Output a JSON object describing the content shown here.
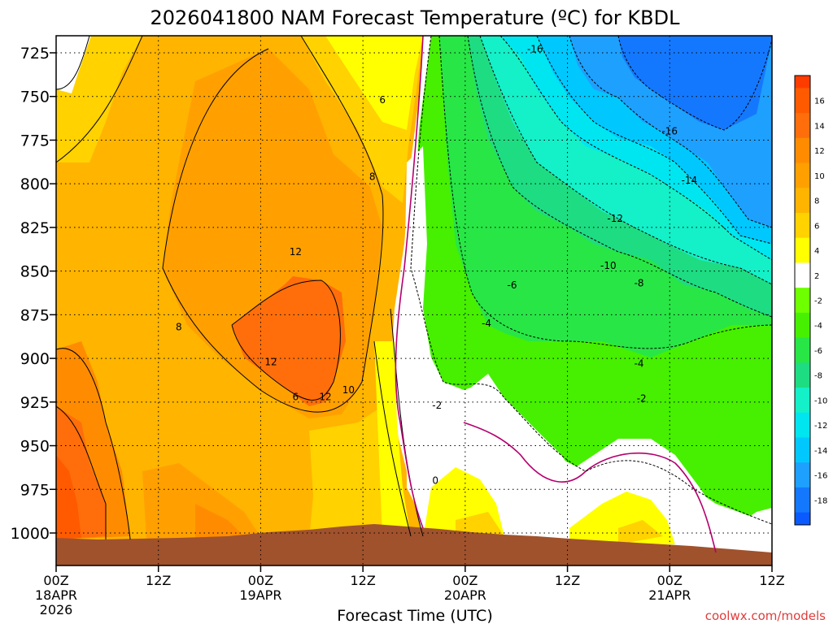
{
  "chart_data": {
    "type": "heatmap",
    "title": "2026041800 NAM Forecast Temperature (ºC) for KBDL",
    "xlabel": "Forecast Time (UTC)",
    "credit": "coolwx.com/models",
    "y_ticks": [
      "725",
      "750",
      "775",
      "800",
      "825",
      "850",
      "875",
      "900",
      "925",
      "950",
      "975",
      "1000"
    ],
    "y_values": [
      725,
      750,
      775,
      800,
      825,
      850,
      875,
      900,
      925,
      950,
      975,
      1000
    ],
    "ylim": [
      1018,
      715
    ],
    "x_ticks": [
      {
        "hour": 0,
        "line1": "00Z",
        "line2": "18APR",
        "line3": "2026"
      },
      {
        "hour": 12,
        "line1": "12Z",
        "line2": "",
        "line3": ""
      },
      {
        "hour": 24,
        "line1": "00Z",
        "line2": "19APR",
        "line3": ""
      },
      {
        "hour": 36,
        "line1": "12Z",
        "line2": "",
        "line3": ""
      },
      {
        "hour": 48,
        "line1": "00Z",
        "line2": "20APR",
        "line3": ""
      },
      {
        "hour": 60,
        "line1": "12Z",
        "line2": "",
        "line3": ""
      },
      {
        "hour": 72,
        "line1": "00Z",
        "line2": "21APR",
        "line3": ""
      },
      {
        "hour": 84,
        "line1": "12Z",
        "line2": "",
        "line3": ""
      }
    ],
    "xlim": [
      0,
      84
    ],
    "grid": true,
    "legend": "right",
    "colorbar": [
      {
        "label": "16",
        "color": "#ff5a00"
      },
      {
        "label": "14",
        "color": "#ff6e0a"
      },
      {
        "label": "12",
        "color": "#ff8c00"
      },
      {
        "label": "10",
        "color": "#ffa000"
      },
      {
        "label": "8",
        "color": "#ffb400"
      },
      {
        "label": "6",
        "color": "#ffd200"
      },
      {
        "label": "4",
        "color": "#ffff00"
      },
      {
        "label": "2",
        "color": "#ffffff"
      },
      {
        "label": "-2",
        "color": "#6eff00"
      },
      {
        "label": "-4",
        "color": "#46f000"
      },
      {
        "label": "-6",
        "color": "#28e646"
      },
      {
        "label": "-8",
        "color": "#1edc82"
      },
      {
        "label": "-10",
        "color": "#14f0c8"
      },
      {
        "label": "-12",
        "color": "#00e6f0"
      },
      {
        "label": "-14",
        "color": "#00c8ff"
      },
      {
        "label": "-16",
        "color": "#1ea0ff"
      },
      {
        "label": "-18",
        "color": "#1478ff"
      }
    ],
    "colorbar_top": "#ff3c00",
    "colorbar_bottom": "#0a5aff",
    "contour_labels": [
      {
        "text": "6",
        "hour": 38.3,
        "p": 752
      },
      {
        "text": "8",
        "hour": 37.1,
        "p": 796
      },
      {
        "text": "12",
        "hour": 28.1,
        "p": 839
      },
      {
        "text": "8",
        "hour": 14.4,
        "p": 882
      },
      {
        "text": "12",
        "hour": 25.2,
        "p": 902
      },
      {
        "text": "10",
        "hour": 34.3,
        "p": 918
      },
      {
        "text": "12",
        "hour": 31.6,
        "p": 922
      },
      {
        "text": "6",
        "hour": 28.1,
        "p": 922
      },
      {
        "text": "-2",
        "hour": 44.7,
        "p": 927
      },
      {
        "text": "0",
        "hour": 44.5,
        "p": 970
      },
      {
        "text": "-16",
        "hour": 56.2,
        "p": 723
      },
      {
        "text": "-16",
        "hour": 72.0,
        "p": 770
      },
      {
        "text": "-14",
        "hour": 74.3,
        "p": 798
      },
      {
        "text": "-12",
        "hour": 65.6,
        "p": 820
      },
      {
        "text": "-10",
        "hour": 64.8,
        "p": 847
      },
      {
        "text": "-8",
        "hour": 68.4,
        "p": 857
      },
      {
        "text": "-6",
        "hour": 53.5,
        "p": 858
      },
      {
        "text": "-4",
        "hour": 50.5,
        "p": 880
      },
      {
        "text": "-4",
        "hour": 68.4,
        "p": 903
      },
      {
        "text": "-2",
        "hour": 68.7,
        "p": 923
      }
    ]
  }
}
